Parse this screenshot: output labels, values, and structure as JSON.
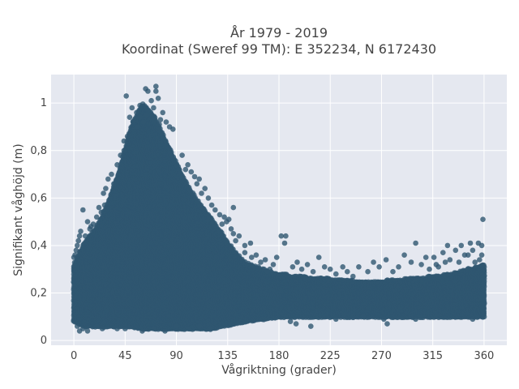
{
  "chart_data": {
    "type": "scatter",
    "title_line1": "År 1979 - 2019",
    "title_line2": "Koordinat (Sweref 99 TM): E 352234, N 6172430",
    "xlabel": "Vågriktning (grader)",
    "ylabel": "Signifikant våghöjd (m)",
    "xlim": [
      -20,
      380
    ],
    "ylim": [
      -0.02,
      1.12
    ],
    "x_ticks": [
      0,
      45,
      90,
      135,
      180,
      225,
      270,
      315,
      360
    ],
    "y_ticks": [
      0,
      0.2,
      0.4,
      0.6,
      0.8,
      1
    ],
    "x_tick_labels": [
      "0",
      "45",
      "90",
      "135",
      "180",
      "225",
      "270",
      "315",
      "360"
    ],
    "y_tick_labels": [
      "0",
      "0,2",
      "0,4",
      "0,6",
      "0,8",
      "1"
    ],
    "grid": true,
    "colors": {
      "marker": "#2f5670",
      "plot_background": "#e5e8f0",
      "grid": "#ffffff"
    },
    "envelope": [
      {
        "x": 0,
        "lower": 0.08,
        "upper": 0.32
      },
      {
        "x": 10,
        "lower": 0.06,
        "upper": 0.42
      },
      {
        "x": 20,
        "lower": 0.06,
        "upper": 0.48
      },
      {
        "x": 30,
        "lower": 0.06,
        "upper": 0.58
      },
      {
        "x": 40,
        "lower": 0.06,
        "upper": 0.72
      },
      {
        "x": 50,
        "lower": 0.06,
        "upper": 0.9
      },
      {
        "x": 60,
        "lower": 0.05,
        "upper": 1.0
      },
      {
        "x": 70,
        "lower": 0.05,
        "upper": 0.95
      },
      {
        "x": 80,
        "lower": 0.05,
        "upper": 0.85
      },
      {
        "x": 90,
        "lower": 0.05,
        "upper": 0.75
      },
      {
        "x": 100,
        "lower": 0.05,
        "upper": 0.65
      },
      {
        "x": 110,
        "lower": 0.05,
        "upper": 0.58
      },
      {
        "x": 120,
        "lower": 0.05,
        "upper": 0.52
      },
      {
        "x": 130,
        "lower": 0.06,
        "upper": 0.45
      },
      {
        "x": 140,
        "lower": 0.07,
        "upper": 0.38
      },
      {
        "x": 150,
        "lower": 0.08,
        "upper": 0.33
      },
      {
        "x": 165,
        "lower": 0.09,
        "upper": 0.3
      },
      {
        "x": 180,
        "lower": 0.1,
        "upper": 0.28
      },
      {
        "x": 200,
        "lower": 0.1,
        "upper": 0.27
      },
      {
        "x": 225,
        "lower": 0.1,
        "upper": 0.26
      },
      {
        "x": 250,
        "lower": 0.1,
        "upper": 0.25
      },
      {
        "x": 270,
        "lower": 0.1,
        "upper": 0.25
      },
      {
        "x": 290,
        "lower": 0.1,
        "upper": 0.26
      },
      {
        "x": 315,
        "lower": 0.1,
        "upper": 0.27
      },
      {
        "x": 330,
        "lower": 0.1,
        "upper": 0.28
      },
      {
        "x": 345,
        "lower": 0.1,
        "upper": 0.3
      },
      {
        "x": 360,
        "lower": 0.1,
        "upper": 0.32
      }
    ],
    "points": [
      [
        46,
        1.03
      ],
      [
        51,
        0.98
      ],
      [
        55,
        0.96
      ],
      [
        58,
        0.99
      ],
      [
        63,
        1.06
      ],
      [
        65,
        1.05
      ],
      [
        68,
        1.01
      ],
      [
        70,
        0.98
      ],
      [
        72,
        1.07
      ],
      [
        72,
        1.05
      ],
      [
        74,
        1.02
      ],
      [
        76,
        0.93
      ],
      [
        78,
        0.96
      ],
      [
        81,
        0.92
      ],
      [
        84,
        0.9
      ],
      [
        87,
        0.89
      ],
      [
        58,
        0.94
      ],
      [
        61,
        0.92
      ],
      [
        56,
        0.9
      ],
      [
        64,
        0.95
      ],
      [
        70,
        0.93
      ],
      [
        75,
        0.91
      ],
      [
        49,
        0.94
      ],
      [
        52,
        0.92
      ],
      [
        30,
        0.68
      ],
      [
        33,
        0.7
      ],
      [
        22,
        0.56
      ],
      [
        26,
        0.62
      ],
      [
        38,
        0.74
      ],
      [
        44,
        0.8
      ],
      [
        28,
        0.64
      ],
      [
        20,
        0.52
      ],
      [
        15,
        0.48
      ],
      [
        12,
        0.5
      ],
      [
        8,
        0.55
      ],
      [
        5,
        0.44
      ],
      [
        95,
        0.78
      ],
      [
        98,
        0.72
      ],
      [
        100,
        0.74
      ],
      [
        103,
        0.71
      ],
      [
        106,
        0.69
      ],
      [
        108,
        0.66
      ],
      [
        110,
        0.68
      ],
      [
        112,
        0.62
      ],
      [
        115,
        0.64
      ],
      [
        118,
        0.6
      ],
      [
        121,
        0.57
      ],
      [
        124,
        0.55
      ],
      [
        128,
        0.53
      ],
      [
        132,
        0.52
      ],
      [
        136,
        0.51
      ],
      [
        138,
        0.47
      ],
      [
        140,
        0.45
      ],
      [
        142,
        0.42
      ],
      [
        134,
        0.5
      ],
      [
        130,
        0.49
      ],
      [
        140,
        0.56
      ],
      [
        145,
        0.44
      ],
      [
        150,
        0.4
      ],
      [
        155,
        0.41
      ],
      [
        160,
        0.36
      ],
      [
        164,
        0.33
      ],
      [
        168,
        0.34
      ],
      [
        172,
        0.3
      ],
      [
        175,
        0.32
      ],
      [
        182,
        0.44
      ],
      [
        186,
        0.44
      ],
      [
        185,
        0.41
      ],
      [
        178,
        0.35
      ],
      [
        192,
        0.31
      ],
      [
        196,
        0.33
      ],
      [
        200,
        0.3
      ],
      [
        205,
        0.32
      ],
      [
        210,
        0.29
      ],
      [
        215,
        0.35
      ],
      [
        220,
        0.31
      ],
      [
        225,
        0.3
      ],
      [
        230,
        0.28
      ],
      [
        236,
        0.31
      ],
      [
        240,
        0.29
      ],
      [
        245,
        0.27
      ],
      [
        250,
        0.31
      ],
      [
        258,
        0.29
      ],
      [
        263,
        0.33
      ],
      [
        268,
        0.31
      ],
      [
        274,
        0.34
      ],
      [
        280,
        0.29
      ],
      [
        285,
        0.31
      ],
      [
        290,
        0.36
      ],
      [
        296,
        0.33
      ],
      [
        300,
        0.41
      ],
      [
        305,
        0.32
      ],
      [
        309,
        0.35
      ],
      [
        312,
        0.3
      ],
      [
        316,
        0.35
      ],
      [
        320,
        0.31
      ],
      [
        324,
        0.37
      ],
      [
        328,
        0.4
      ],
      [
        330,
        0.34
      ],
      [
        335,
        0.38
      ],
      [
        340,
        0.4
      ],
      [
        343,
        0.36
      ],
      [
        348,
        0.41
      ],
      [
        350,
        0.38
      ],
      [
        355,
        0.41
      ],
      [
        358,
        0.4
      ],
      [
        359,
        0.51
      ],
      [
        208,
        0.06
      ],
      [
        190,
        0.08
      ],
      [
        195,
        0.07
      ],
      [
        275,
        0.07
      ],
      [
        272,
        0.09
      ],
      [
        254,
        0.1
      ],
      [
        230,
        0.09
      ],
      [
        350,
        0.09
      ],
      [
        300,
        0.09
      ],
      [
        5,
        0.04
      ],
      [
        8,
        0.05
      ],
      [
        12,
        0.04
      ],
      [
        3,
        0.06
      ],
      [
        20,
        0.06
      ],
      [
        25,
        0.05
      ],
      [
        60,
        0.04
      ],
      [
        80,
        0.04
      ],
      [
        100,
        0.05
      ],
      [
        120,
        0.05
      ],
      [
        38,
        0.05
      ],
      [
        45,
        0.05
      ],
      [
        70,
        0.05
      ],
      [
        90,
        0.06
      ],
      [
        110,
        0.06
      ],
      [
        1,
        0.36
      ],
      [
        2,
        0.38
      ],
      [
        3,
        0.4
      ],
      [
        0,
        0.35
      ],
      [
        4,
        0.42
      ],
      [
        6,
        0.46
      ],
      [
        10,
        0.44
      ],
      [
        14,
        0.47
      ],
      [
        17,
        0.49
      ],
      [
        24,
        0.54
      ],
      [
        27,
        0.57
      ],
      [
        35,
        0.66
      ],
      [
        41,
        0.78
      ],
      [
        44,
        0.84
      ],
      [
        47,
        0.86
      ],
      [
        150,
        0.37
      ],
      [
        156,
        0.35
      ],
      [
        162,
        0.31
      ],
      [
        167,
        0.3
      ],
      [
        170,
        0.29
      ],
      [
        358,
        0.36
      ],
      [
        356,
        0.34
      ],
      [
        352,
        0.33
      ],
      [
        346,
        0.36
      ],
      [
        338,
        0.33
      ],
      [
        326,
        0.33
      ],
      [
        318,
        0.32
      ]
    ]
  }
}
